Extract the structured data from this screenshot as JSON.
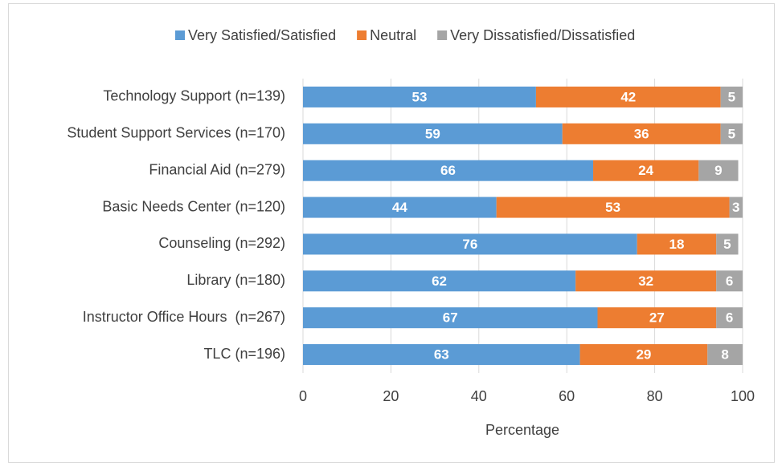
{
  "chart_data": {
    "type": "stacked_barh",
    "categories": [
      "Technology Support (n=139)",
      "Student Support Services (n=170)",
      "Financial Aid (n=279)",
      "Basic Needs Center (n=120)",
      "Counseling (n=292)",
      "Library (n=180)",
      "Instructor Office Hours  (n=267)",
      "TLC (n=196)"
    ],
    "series": [
      {
        "name": "Very Satisfied/Satisfied",
        "color": "#5b9bd5",
        "values": [
          53,
          59,
          66,
          44,
          76,
          62,
          67,
          63
        ]
      },
      {
        "name": "Neutral",
        "color": "#ed7d31",
        "values": [
          42,
          36,
          24,
          53,
          18,
          32,
          27,
          29
        ]
      },
      {
        "name": "Very Dissatisfied/Dissatisfied",
        "color": "#a5a5a5",
        "values": [
          5,
          5,
          9,
          3,
          5,
          6,
          6,
          8
        ]
      }
    ],
    "xlabel": "Percentage",
    "xlim": [
      0,
      100
    ],
    "xticks": [
      0,
      20,
      40,
      60,
      80,
      100
    ],
    "grid": true,
    "legend": "top"
  }
}
